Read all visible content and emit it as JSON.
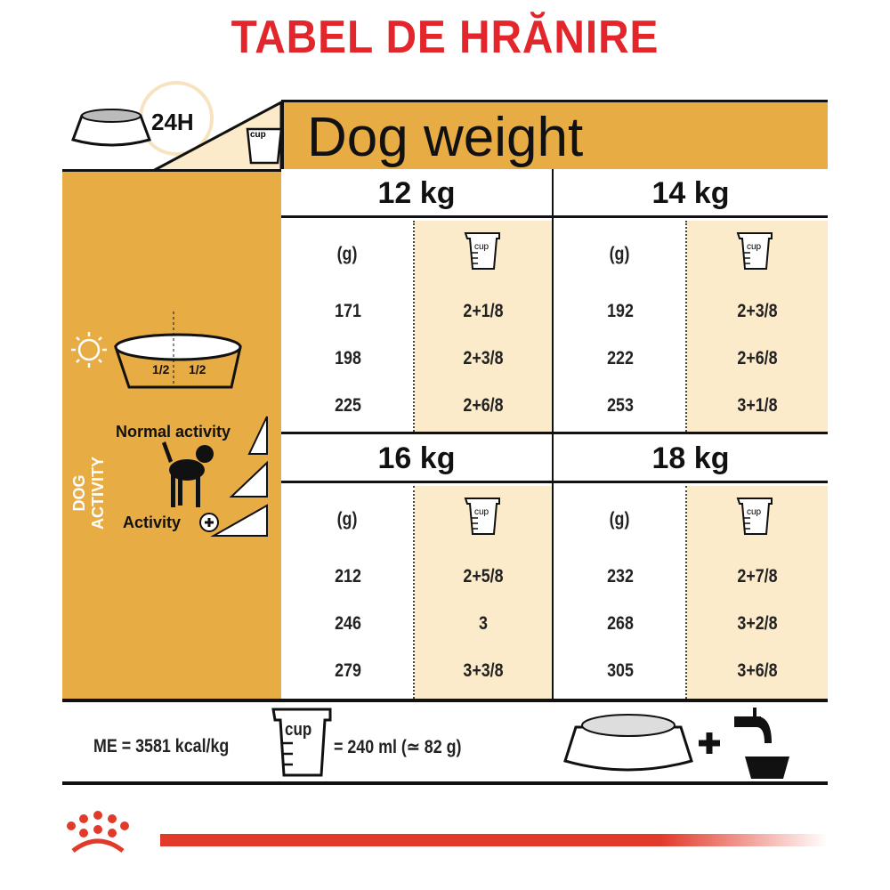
{
  "title": "TABEL DE HRĂNIRE",
  "header": {
    "h24": "24H",
    "cup_label": "cup",
    "dog_weight": "Dog weight"
  },
  "left": {
    "half1": "1/2",
    "half2": "1/2",
    "dog_activity": "DOG ACTIVITY",
    "normal_activity": "Normal activity",
    "activity": "Activity"
  },
  "columns": {
    "grams": "(g)",
    "cup": "cup"
  },
  "weights": [
    {
      "label": "12 kg",
      "rows": [
        [
          "171",
          "2+1/8"
        ],
        [
          "198",
          "2+3/8"
        ],
        [
          "225",
          "2+6/8"
        ]
      ]
    },
    {
      "label": "14 kg",
      "rows": [
        [
          "192",
          "2+3/8"
        ],
        [
          "222",
          "2+6/8"
        ],
        [
          "253",
          "3+1/8"
        ]
      ]
    },
    {
      "label": "16 kg",
      "rows": [
        [
          "212",
          "2+5/8"
        ],
        [
          "246",
          "3"
        ],
        [
          "279",
          "3+3/8"
        ]
      ]
    },
    {
      "label": "18 kg",
      "rows": [
        [
          "232",
          "2+7/8"
        ],
        [
          "268",
          "3+2/8"
        ],
        [
          "305",
          "3+6/8"
        ]
      ]
    }
  ],
  "footer": {
    "me": "ME = 3581 kcal/kg",
    "cup_label": "cup",
    "cup_eq": "= 240 ml (≃ 82 g)"
  },
  "colors": {
    "title": "#e3262b",
    "orange": "#e8ac45",
    "cream": "#fcebcb",
    "brand_red": "#e23a2a"
  }
}
